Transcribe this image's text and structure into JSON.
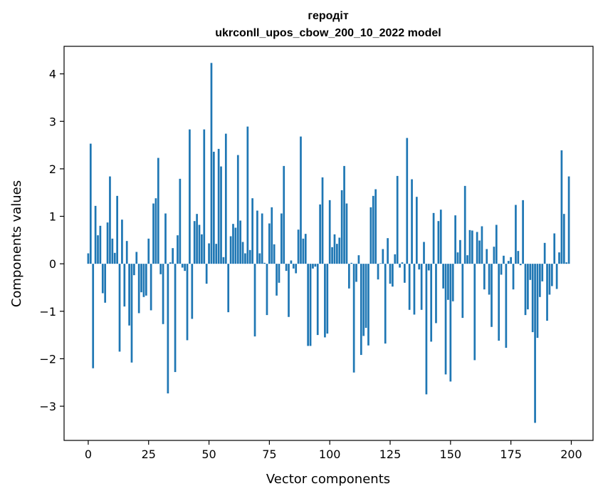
{
  "chart_data": {
    "type": "bar",
    "title": "геродіт",
    "subtitle": "ukrconll_upos_cbow_200_10_2022 model",
    "xlabel": "Vector components",
    "ylabel": "Components values",
    "xlim": [
      -10,
      209
    ],
    "ylim": [
      -3.72,
      4.58
    ],
    "xticks": [
      0,
      25,
      50,
      75,
      100,
      125,
      150,
      175,
      200
    ],
    "xtick_labels": [
      "0",
      "25",
      "50",
      "75",
      "100",
      "125",
      "150",
      "175",
      "200"
    ],
    "yticks": [
      -3,
      -2,
      -1,
      0,
      1,
      2,
      3,
      4
    ],
    "ytick_labels": [
      "−3",
      "−2",
      "−1",
      "0",
      "1",
      "2",
      "3",
      "4"
    ],
    "bar_color": "#1f77b4",
    "grid": false,
    "x": [
      0,
      1,
      2,
      3,
      4,
      5,
      6,
      7,
      8,
      9,
      10,
      11,
      12,
      13,
      14,
      15,
      16,
      17,
      18,
      19,
      20,
      21,
      22,
      23,
      24,
      25,
      26,
      27,
      28,
      29,
      30,
      31,
      32,
      33,
      34,
      35,
      36,
      37,
      38,
      39,
      40,
      41,
      42,
      43,
      44,
      45,
      46,
      47,
      48,
      49,
      50,
      51,
      52,
      53,
      54,
      55,
      56,
      57,
      58,
      59,
      60,
      61,
      62,
      63,
      64,
      65,
      66,
      67,
      68,
      69,
      70,
      71,
      72,
      73,
      74,
      75,
      76,
      77,
      78,
      79,
      80,
      81,
      82,
      83,
      84,
      85,
      86,
      87,
      88,
      89,
      90,
      91,
      92,
      93,
      94,
      95,
      96,
      97,
      98,
      99,
      100,
      101,
      102,
      103,
      104,
      105,
      106,
      107,
      108,
      109,
      110,
      111,
      112,
      113,
      114,
      115,
      116,
      117,
      118,
      119,
      120,
      121,
      122,
      123,
      124,
      125,
      126,
      127,
      128,
      129,
      130,
      131,
      132,
      133,
      134,
      135,
      136,
      137,
      138,
      139,
      140,
      141,
      142,
      143,
      144,
      145,
      146,
      147,
      148,
      149,
      150,
      151,
      152,
      153,
      154,
      155,
      156,
      157,
      158,
      159,
      160,
      161,
      162,
      163,
      164,
      165,
      166,
      167,
      168,
      169,
      170,
      171,
      172,
      173,
      174,
      175,
      176,
      177,
      178,
      179,
      180,
      181,
      182,
      183,
      184,
      185,
      186,
      187,
      188,
      189,
      190,
      191,
      192,
      193,
      194,
      195,
      196,
      197,
      198,
      199
    ],
    "values": [
      0.22,
      2.53,
      -2.2,
      1.22,
      0.6,
      0.8,
      -0.62,
      -0.82,
      0.87,
      1.84,
      0.53,
      0.23,
      1.43,
      -1.85,
      0.93,
      -0.9,
      0.48,
      -1.3,
      -2.08,
      -0.24,
      0.25,
      -1.04,
      -0.6,
      -0.7,
      -0.67,
      0.53,
      -0.98,
      1.27,
      1.38,
      2.23,
      -0.22,
      -1.27,
      1.06,
      -2.73,
      0.03,
      0.33,
      -2.28,
      0.6,
      1.79,
      -0.08,
      -0.15,
      -1.61,
      2.83,
      -1.16,
      0.9,
      1.05,
      0.82,
      0.62,
      2.83,
      -0.42,
      0.43,
      4.23,
      2.36,
      0.42,
      2.42,
      2.05,
      0.14,
      2.74,
      -1.02,
      0.58,
      0.84,
      0.76,
      2.29,
      0.91,
      0.46,
      0.22,
      2.89,
      0.29,
      1.38,
      -1.53,
      1.12,
      0.22,
      1.06,
      0.02,
      -1.08,
      0.85,
      1.19,
      0.41,
      -0.67,
      -0.4,
      1.06,
      2.06,
      -0.15,
      -1.12,
      0.07,
      -0.1,
      -0.2,
      0.72,
      2.68,
      0.53,
      0.63,
      -1.73,
      -1.73,
      -0.1,
      -0.06,
      -1.5,
      1.25,
      1.82,
      -1.55,
      -1.47,
      1.34,
      0.35,
      0.62,
      0.42,
      0.55,
      1.55,
      2.06,
      1.27,
      -0.52,
      0.02,
      -2.29,
      -0.38,
      0.18,
      -1.92,
      -1.52,
      -1.35,
      -1.72,
      1.19,
      1.43,
      1.57,
      -0.33,
      0.01,
      0.31,
      -1.68,
      0.54,
      -0.42,
      -0.48,
      0.2,
      1.85,
      -0.08,
      0.03,
      -0.4,
      2.65,
      -0.97,
      1.78,
      -1.07,
      1.41,
      -0.12,
      -0.97,
      0.46,
      -2.75,
      -0.14,
      -1.64,
      1.07,
      -1.25,
      0.9,
      1.14,
      -0.52,
      -2.33,
      -0.76,
      -2.48,
      -0.79,
      1.02,
      0.24,
      0.5,
      -1.14,
      1.64,
      0.18,
      0.71,
      0.7,
      -2.03,
      0.67,
      0.49,
      0.79,
      -0.54,
      0.31,
      -0.65,
      -1.33,
      0.36,
      0.82,
      -1.62,
      -0.23,
      0.17,
      -1.77,
      0.06,
      0.14,
      -0.54,
      1.24,
      0.27,
      -0.03,
      1.34,
      -1.08,
      -0.96,
      -0.34,
      -1.44,
      -3.35,
      -1.56,
      -0.7,
      -0.37,
      0.44,
      -1.2,
      -0.65,
      -0.47,
      0.64,
      -0.53,
      0.24,
      2.39,
      1.05,
      0.03,
      1.84
    ]
  }
}
